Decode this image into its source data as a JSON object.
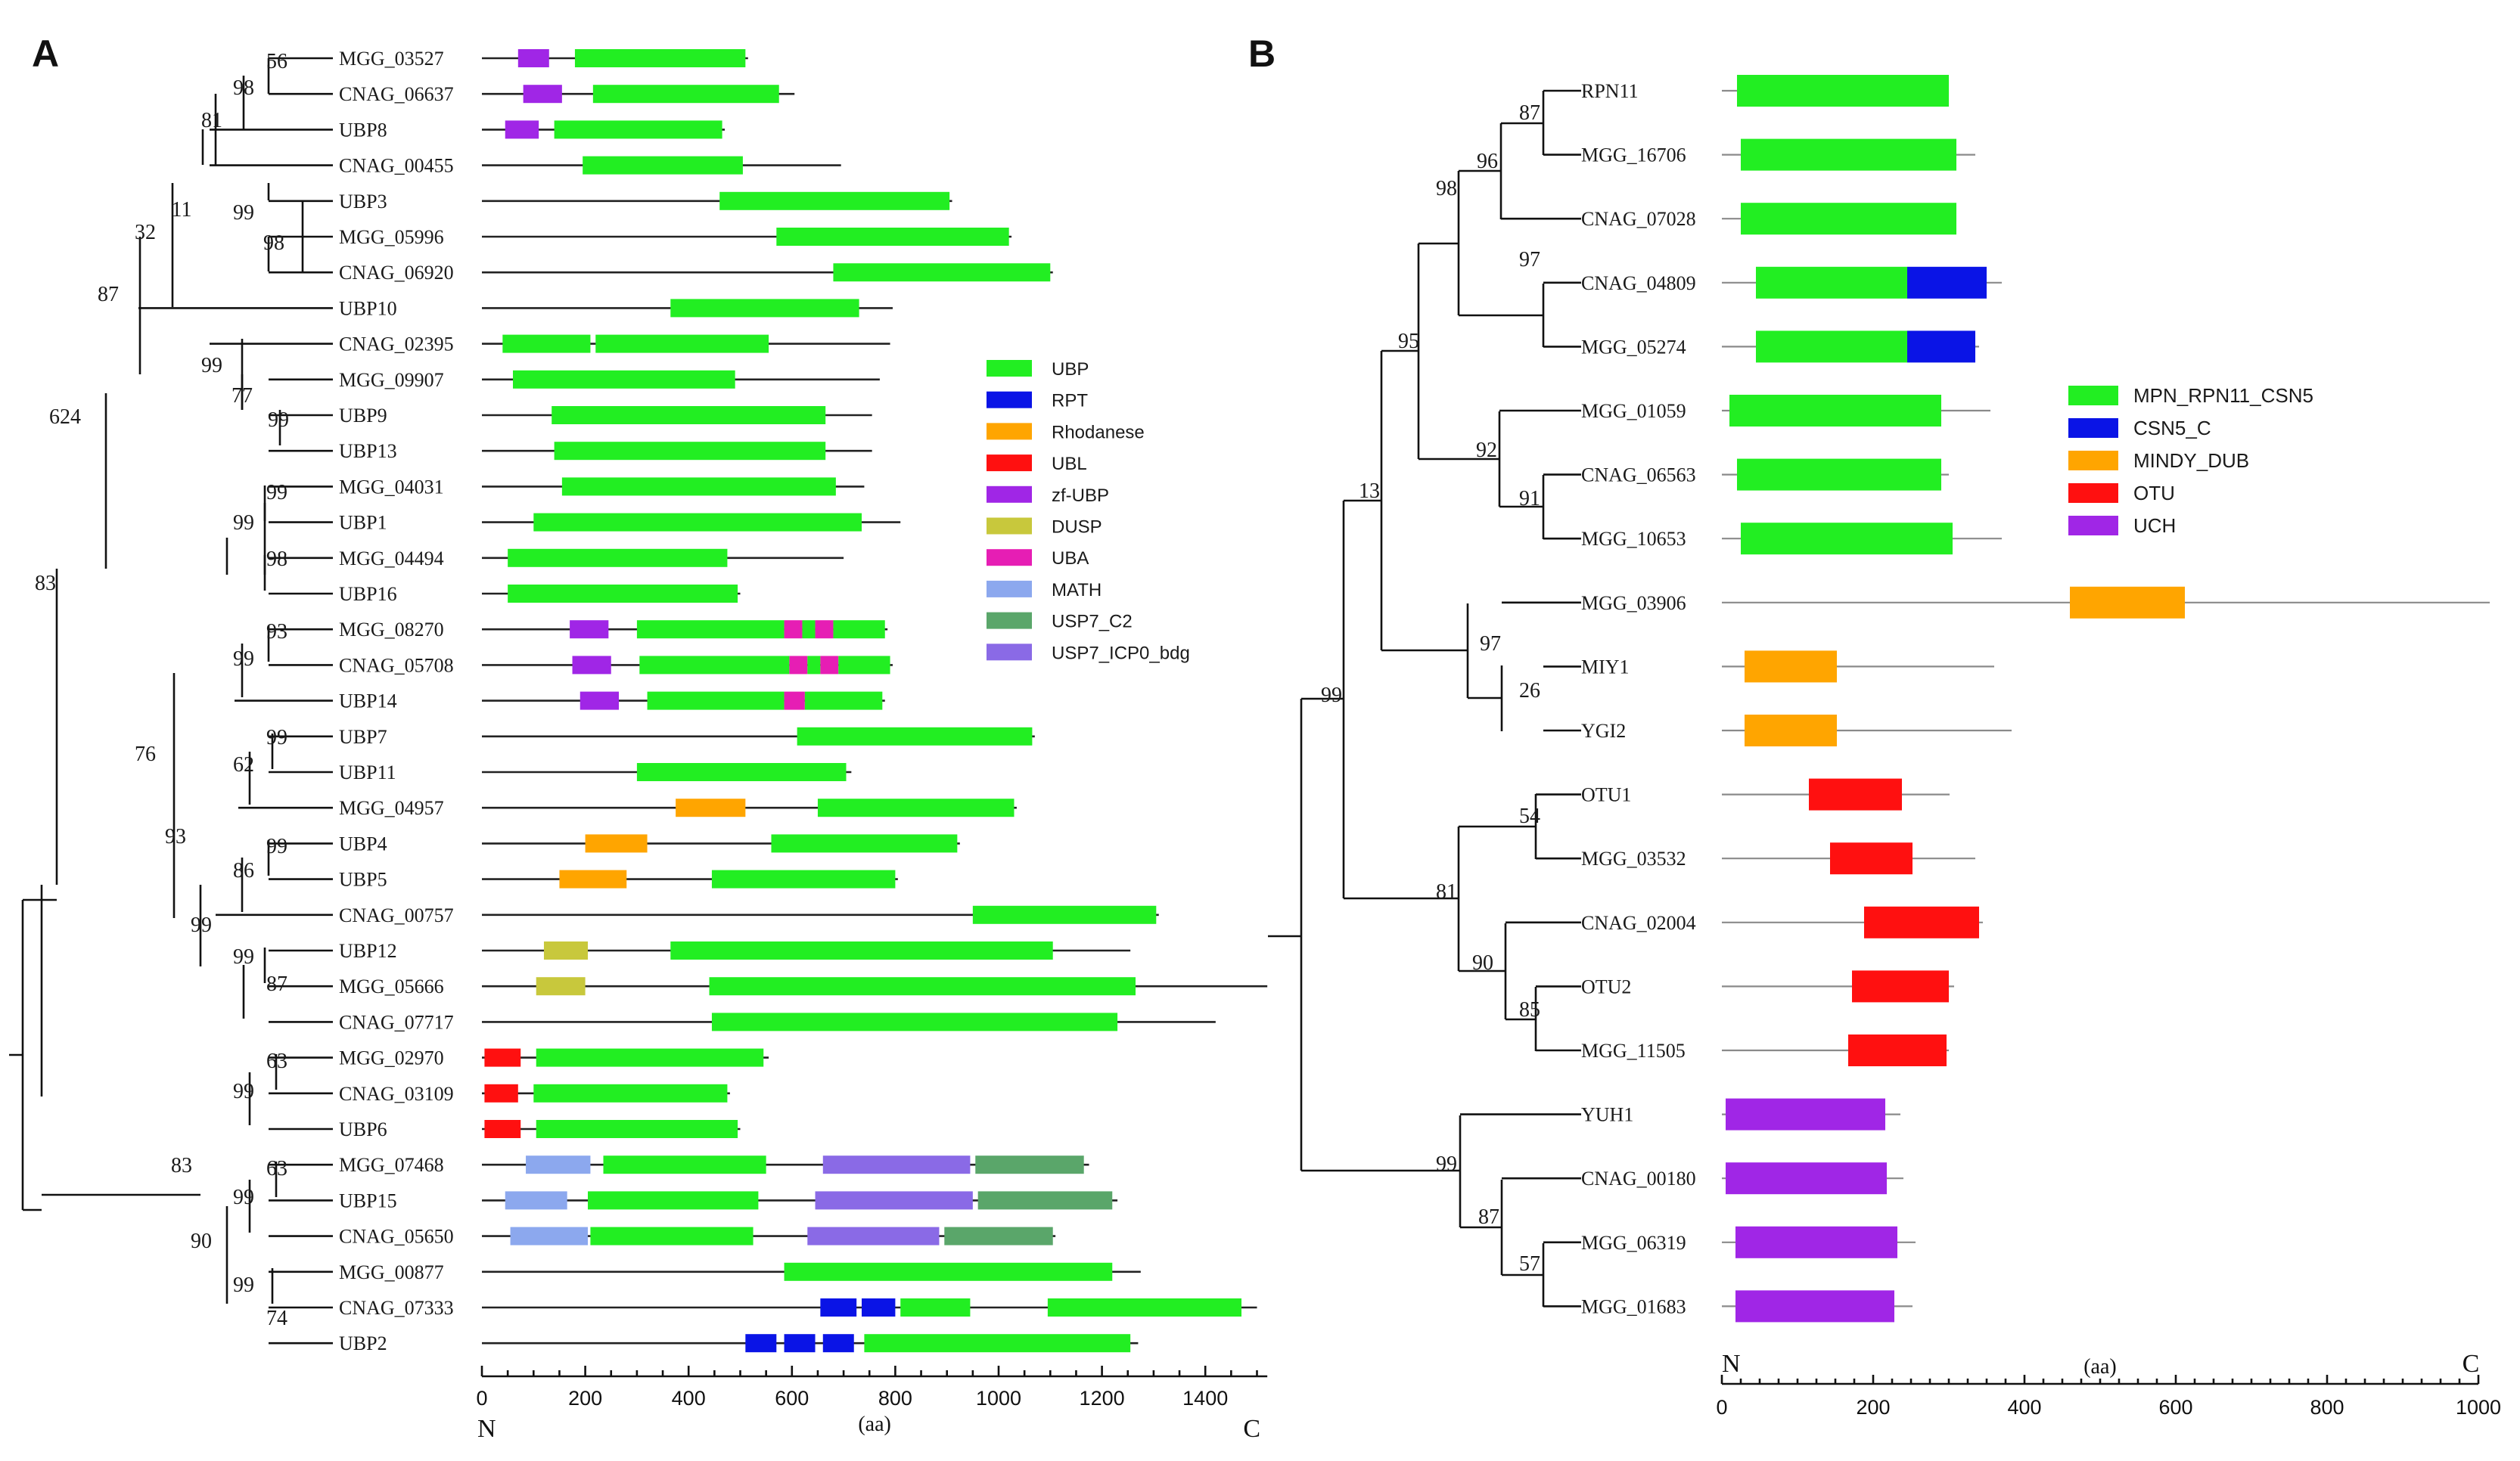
{
  "panels": [
    "A",
    "B"
  ],
  "colors": {
    "UBP": "#22ee22",
    "RPT": "#0a14e6",
    "Rhodanese": "#ffa500",
    "UBL": "#ff1010",
    "zf-UBP": "#a026e6",
    "DUSP": "#c8c83c",
    "UBA": "#e61eb4",
    "MATH": "#8ca8ee",
    "USP7_C2": "#5aa66a",
    "USP7_ICP0_bdg": "#8a6ae6",
    "MPN_RPN11_CSN5": "#22ee22",
    "CSN5_C": "#0a14e6",
    "MINDY_DUB": "#ffa500",
    "OTU": "#ff1010",
    "UCH": "#a026e6"
  },
  "panelA": {
    "legend": [
      "UBP",
      "RPT",
      "Rhodanese",
      "UBL",
      "zf-UBP",
      "DUSP",
      "UBA",
      "MATH",
      "USP7_C2",
      "USP7_ICP0_bdg"
    ],
    "axis": {
      "ticks": [
        "0",
        "200",
        "400",
        "600",
        "800",
        "1000",
        "1200",
        "1400"
      ],
      "unit": "(aa)",
      "n_label": "N",
      "c_label": "C"
    },
    "bootstrap": [
      "56",
      "98",
      "81",
      "11",
      "99",
      "98",
      "32",
      "87",
      "99",
      "77",
      "99",
      "624",
      "99",
      "99",
      "98",
      "83",
      "93",
      "99",
      "76",
      "99",
      "62",
      "93",
      "99",
      "86",
      "99",
      "99",
      "87",
      "63",
      "99",
      "83",
      "63",
      "99",
      "90",
      "99",
      "74"
    ],
    "proteins": [
      {
        "name": "MGG_03527",
        "length": 515,
        "domains": [
          {
            "t": "zf-UBP",
            "s": 70,
            "e": 130
          },
          {
            "t": "UBP",
            "s": 180,
            "e": 510
          }
        ]
      },
      {
        "name": "CNAG_06637",
        "length": 605,
        "domains": [
          {
            "t": "zf-UBP",
            "s": 80,
            "e": 155
          },
          {
            "t": "UBP",
            "s": 215,
            "e": 575
          }
        ]
      },
      {
        "name": "UBP8",
        "length": 470,
        "domains": [
          {
            "t": "zf-UBP",
            "s": 45,
            "e": 110
          },
          {
            "t": "UBP",
            "s": 140,
            "e": 465
          }
        ]
      },
      {
        "name": "CNAG_00455",
        "length": 695,
        "domains": [
          {
            "t": "UBP",
            "s": 195,
            "e": 505
          }
        ]
      },
      {
        "name": "UBP3",
        "length": 910,
        "domains": [
          {
            "t": "UBP",
            "s": 460,
            "e": 905
          }
        ]
      },
      {
        "name": "MGG_05996",
        "length": 1025,
        "domains": [
          {
            "t": "UBP",
            "s": 570,
            "e": 1020
          }
        ]
      },
      {
        "name": "CNAG_06920",
        "length": 1105,
        "domains": [
          {
            "t": "UBP",
            "s": 680,
            "e": 1100
          }
        ]
      },
      {
        "name": "UBP10",
        "length": 795,
        "domains": [
          {
            "t": "UBP",
            "s": 365,
            "e": 730
          }
        ]
      },
      {
        "name": "CNAG_02395",
        "length": 790,
        "domains": [
          {
            "t": "UBP",
            "s": 40,
            "e": 210
          },
          {
            "t": "UBP",
            "s": 220,
            "e": 555
          }
        ]
      },
      {
        "name": "MGG_09907",
        "length": 770,
        "domains": [
          {
            "t": "UBP",
            "s": 60,
            "e": 490
          }
        ]
      },
      {
        "name": "UBP9",
        "length": 755,
        "domains": [
          {
            "t": "UBP",
            "s": 135,
            "e": 665
          }
        ]
      },
      {
        "name": "UBP13",
        "length": 755,
        "domains": [
          {
            "t": "UBP",
            "s": 140,
            "e": 665
          }
        ]
      },
      {
        "name": "MGG_04031",
        "length": 740,
        "domains": [
          {
            "t": "UBP",
            "s": 155,
            "e": 685
          }
        ]
      },
      {
        "name": "UBP1",
        "length": 810,
        "domains": [
          {
            "t": "UBP",
            "s": 100,
            "e": 735
          }
        ]
      },
      {
        "name": "MGG_04494",
        "length": 700,
        "domains": [
          {
            "t": "UBP",
            "s": 50,
            "e": 475
          }
        ]
      },
      {
        "name": "UBP16",
        "length": 500,
        "domains": [
          {
            "t": "UBP",
            "s": 50,
            "e": 495
          }
        ]
      },
      {
        "name": "MGG_08270",
        "length": 785,
        "domains": [
          {
            "t": "zf-UBP",
            "s": 170,
            "e": 245
          },
          {
            "t": "UBP",
            "s": 300,
            "e": 585
          },
          {
            "t": "UBA",
            "s": 585,
            "e": 620
          },
          {
            "t": "UBP",
            "s": 620,
            "e": 645
          },
          {
            "t": "UBA",
            "s": 645,
            "e": 680
          },
          {
            "t": "UBP",
            "s": 680,
            "e": 780
          }
        ]
      },
      {
        "name": "CNAG_05708",
        "length": 795,
        "domains": [
          {
            "t": "zf-UBP",
            "s": 175,
            "e": 250
          },
          {
            "t": "UBP",
            "s": 305,
            "e": 595
          },
          {
            "t": "UBA",
            "s": 595,
            "e": 630
          },
          {
            "t": "UBP",
            "s": 630,
            "e": 655
          },
          {
            "t": "UBA",
            "s": 655,
            "e": 690
          },
          {
            "t": "UBP",
            "s": 690,
            "e": 790
          }
        ]
      },
      {
        "name": "UBP14",
        "length": 780,
        "domains": [
          {
            "t": "zf-UBP",
            "s": 190,
            "e": 265
          },
          {
            "t": "UBP",
            "s": 320,
            "e": 585
          },
          {
            "t": "UBA",
            "s": 585,
            "e": 625
          },
          {
            "t": "UBP",
            "s": 625,
            "e": 775
          }
        ]
      },
      {
        "name": "UBP7",
        "length": 1070,
        "domains": [
          {
            "t": "UBP",
            "s": 610,
            "e": 1065
          }
        ]
      },
      {
        "name": "UBP11",
        "length": 715,
        "domains": [
          {
            "t": "UBP",
            "s": 300,
            "e": 705
          }
        ]
      },
      {
        "name": "MGG_04957",
        "length": 1035,
        "domains": [
          {
            "t": "Rhodanese",
            "s": 375,
            "e": 510
          },
          {
            "t": "UBP",
            "s": 650,
            "e": 1030
          }
        ]
      },
      {
        "name": "UBP4",
        "length": 925,
        "domains": [
          {
            "t": "Rhodanese",
            "s": 200,
            "e": 320
          },
          {
            "t": "UBP",
            "s": 560,
            "e": 920
          }
        ]
      },
      {
        "name": "UBP5",
        "length": 805,
        "domains": [
          {
            "t": "Rhodanese",
            "s": 150,
            "e": 280
          },
          {
            "t": "UBP",
            "s": 445,
            "e": 800
          }
        ]
      },
      {
        "name": "CNAG_00757",
        "length": 1310,
        "domains": [
          {
            "t": "UBP",
            "s": 950,
            "e": 1305
          }
        ]
      },
      {
        "name": "UBP12",
        "length": 1255,
        "domains": [
          {
            "t": "DUSP",
            "s": 120,
            "e": 205
          },
          {
            "t": "UBP",
            "s": 365,
            "e": 1105
          }
        ]
      },
      {
        "name": "MGG_05666",
        "length": 1520,
        "domains": [
          {
            "t": "DUSP",
            "s": 105,
            "e": 200
          },
          {
            "t": "UBP",
            "s": 440,
            "e": 1265
          }
        ]
      },
      {
        "name": "CNAG_07717",
        "length": 1420,
        "domains": [
          {
            "t": "UBP",
            "s": 445,
            "e": 1230
          }
        ]
      },
      {
        "name": "MGG_02970",
        "length": 555,
        "domains": [
          {
            "t": "UBL",
            "s": 5,
            "e": 75
          },
          {
            "t": "UBP",
            "s": 105,
            "e": 545
          }
        ]
      },
      {
        "name": "CNAG_03109",
        "length": 480,
        "domains": [
          {
            "t": "UBL",
            "s": 5,
            "e": 70
          },
          {
            "t": "UBP",
            "s": 100,
            "e": 475
          }
        ]
      },
      {
        "name": "UBP6",
        "length": 500,
        "domains": [
          {
            "t": "UBL",
            "s": 5,
            "e": 75
          },
          {
            "t": "UBP",
            "s": 105,
            "e": 495
          }
        ]
      },
      {
        "name": "MGG_07468",
        "length": 1175,
        "domains": [
          {
            "t": "MATH",
            "s": 85,
            "e": 210
          },
          {
            "t": "UBP",
            "s": 235,
            "e": 550
          },
          {
            "t": "USP7_ICP0_bdg",
            "s": 660,
            "e": 945
          },
          {
            "t": "USP7_C2",
            "s": 955,
            "e": 1165
          }
        ]
      },
      {
        "name": "UBP15",
        "length": 1230,
        "domains": [
          {
            "t": "MATH",
            "s": 45,
            "e": 165
          },
          {
            "t": "UBP",
            "s": 205,
            "e": 535
          },
          {
            "t": "USP7_ICP0_bdg",
            "s": 645,
            "e": 950
          },
          {
            "t": "USP7_C2",
            "s": 960,
            "e": 1220
          }
        ]
      },
      {
        "name": "CNAG_05650",
        "length": 1110,
        "domains": [
          {
            "t": "MATH",
            "s": 55,
            "e": 205
          },
          {
            "t": "UBP",
            "s": 210,
            "e": 525
          },
          {
            "t": "USP7_ICP0_bdg",
            "s": 630,
            "e": 885
          },
          {
            "t": "USP7_C2",
            "s": 895,
            "e": 1105
          }
        ]
      },
      {
        "name": "MGG_00877",
        "length": 1275,
        "domains": [
          {
            "t": "UBP",
            "s": 585,
            "e": 1220
          }
        ]
      },
      {
        "name": "CNAG_07333",
        "length": 1500,
        "domains": [
          {
            "t": "RPT",
            "s": 655,
            "e": 725
          },
          {
            "t": "RPT",
            "s": 735,
            "e": 800
          },
          {
            "t": "UBP",
            "s": 810,
            "e": 945
          },
          {
            "t": "UBP",
            "s": 1095,
            "e": 1470
          }
        ]
      },
      {
        "name": "UBP2",
        "length": 1270,
        "domains": [
          {
            "t": "RPT",
            "s": 510,
            "e": 570
          },
          {
            "t": "RPT",
            "s": 585,
            "e": 645
          },
          {
            "t": "RPT",
            "s": 660,
            "e": 720
          },
          {
            "t": "UBP",
            "s": 740,
            "e": 1255
          }
        ]
      }
    ]
  },
  "panelB": {
    "legend": [
      "MPN_RPN11_CSN5",
      "CSN5_C",
      "MINDY_DUB",
      "OTU",
      "UCH"
    ],
    "legend_labels": [
      "MPN_RPN11_CSN5",
      "CSN5_C",
      "MINDY_DUB",
      "OTU",
      " UCH"
    ],
    "axis": {
      "ticks": [
        "0",
        "200",
        "400",
        "600",
        "800",
        "1000"
      ],
      "unit": "(aa)",
      "n_label": "N",
      "c_label": "C"
    },
    "bootstrap": [
      "87",
      "96",
      "98",
      "97",
      "95",
      "92",
      "91",
      "13",
      "97",
      "26",
      "99",
      "54",
      "81",
      "90",
      "85",
      "99",
      "87",
      "57"
    ],
    "proteins": [
      {
        "name": "RPN11",
        "length": 300,
        "domains": [
          {
            "t": "MPN_RPN11_CSN5",
            "s": 20,
            "e": 300
          }
        ]
      },
      {
        "name": "MGG_16706",
        "length": 335,
        "domains": [
          {
            "t": "MPN_RPN11_CSN5",
            "s": 25,
            "e": 310
          }
        ]
      },
      {
        "name": "CNAG_07028",
        "length": 310,
        "domains": [
          {
            "t": "MPN_RPN11_CSN5",
            "s": 25,
            "e": 310
          }
        ]
      },
      {
        "name": "CNAG_04809",
        "length": 370,
        "domains": [
          {
            "t": "MPN_RPN11_CSN5",
            "s": 45,
            "e": 245
          },
          {
            "t": "CSN5_C",
            "s": 245,
            "e": 350
          }
        ]
      },
      {
        "name": "MGG_05274",
        "length": 340,
        "domains": [
          {
            "t": "MPN_RPN11_CSN5",
            "s": 45,
            "e": 245
          },
          {
            "t": "CSN5_C",
            "s": 245,
            "e": 335
          }
        ]
      },
      {
        "name": "MGG_01059",
        "length": 355,
        "domains": [
          {
            "t": "MPN_RPN11_CSN5",
            "s": 10,
            "e": 290
          }
        ]
      },
      {
        "name": "CNAG_06563",
        "length": 300,
        "domains": [
          {
            "t": "MPN_RPN11_CSN5",
            "s": 20,
            "e": 290
          }
        ]
      },
      {
        "name": "MGG_10653",
        "length": 370,
        "domains": [
          {
            "t": "MPN_RPN11_CSN5",
            "s": 25,
            "e": 305
          }
        ]
      },
      {
        "name": "MGG_03906",
        "length": 1015,
        "domains": [
          {
            "t": "MINDY_DUB",
            "s": 460,
            "e": 612
          }
        ]
      },
      {
        "name": "MIY1",
        "length": 360,
        "domains": [
          {
            "t": "MINDY_DUB",
            "s": 30,
            "e": 152
          }
        ]
      },
      {
        "name": "YGI2",
        "length": 383,
        "domains": [
          {
            "t": "MINDY_DUB",
            "s": 30,
            "e": 152
          }
        ]
      },
      {
        "name": "OTU1",
        "length": 301,
        "domains": [
          {
            "t": "OTU",
            "s": 115,
            "e": 238
          }
        ]
      },
      {
        "name": "MGG_03532",
        "length": 335,
        "domains": [
          {
            "t": "OTU",
            "s": 143,
            "e": 252
          }
        ]
      },
      {
        "name": "CNAG_02004",
        "length": 345,
        "domains": [
          {
            "t": "OTU",
            "s": 188,
            "e": 340
          }
        ]
      },
      {
        "name": "OTU2",
        "length": 307,
        "domains": [
          {
            "t": "OTU",
            "s": 172,
            "e": 300
          }
        ]
      },
      {
        "name": "MGG_11505",
        "length": 300,
        "domains": [
          {
            "t": "OTU",
            "s": 167,
            "e": 297
          }
        ]
      },
      {
        "name": "YUH1",
        "length": 236,
        "domains": [
          {
            "t": "UCH",
            "s": 5,
            "e": 216
          }
        ]
      },
      {
        "name": "CNAG_00180",
        "length": 240,
        "domains": [
          {
            "t": "UCH",
            "s": 5,
            "e": 218
          }
        ]
      },
      {
        "name": "MGG_06319",
        "length": 256,
        "domains": [
          {
            "t": "UCH",
            "s": 18,
            "e": 232
          }
        ]
      },
      {
        "name": "MGG_01683",
        "length": 252,
        "domains": [
          {
            "t": "UCH",
            "s": 18,
            "e": 228
          }
        ]
      }
    ]
  }
}
